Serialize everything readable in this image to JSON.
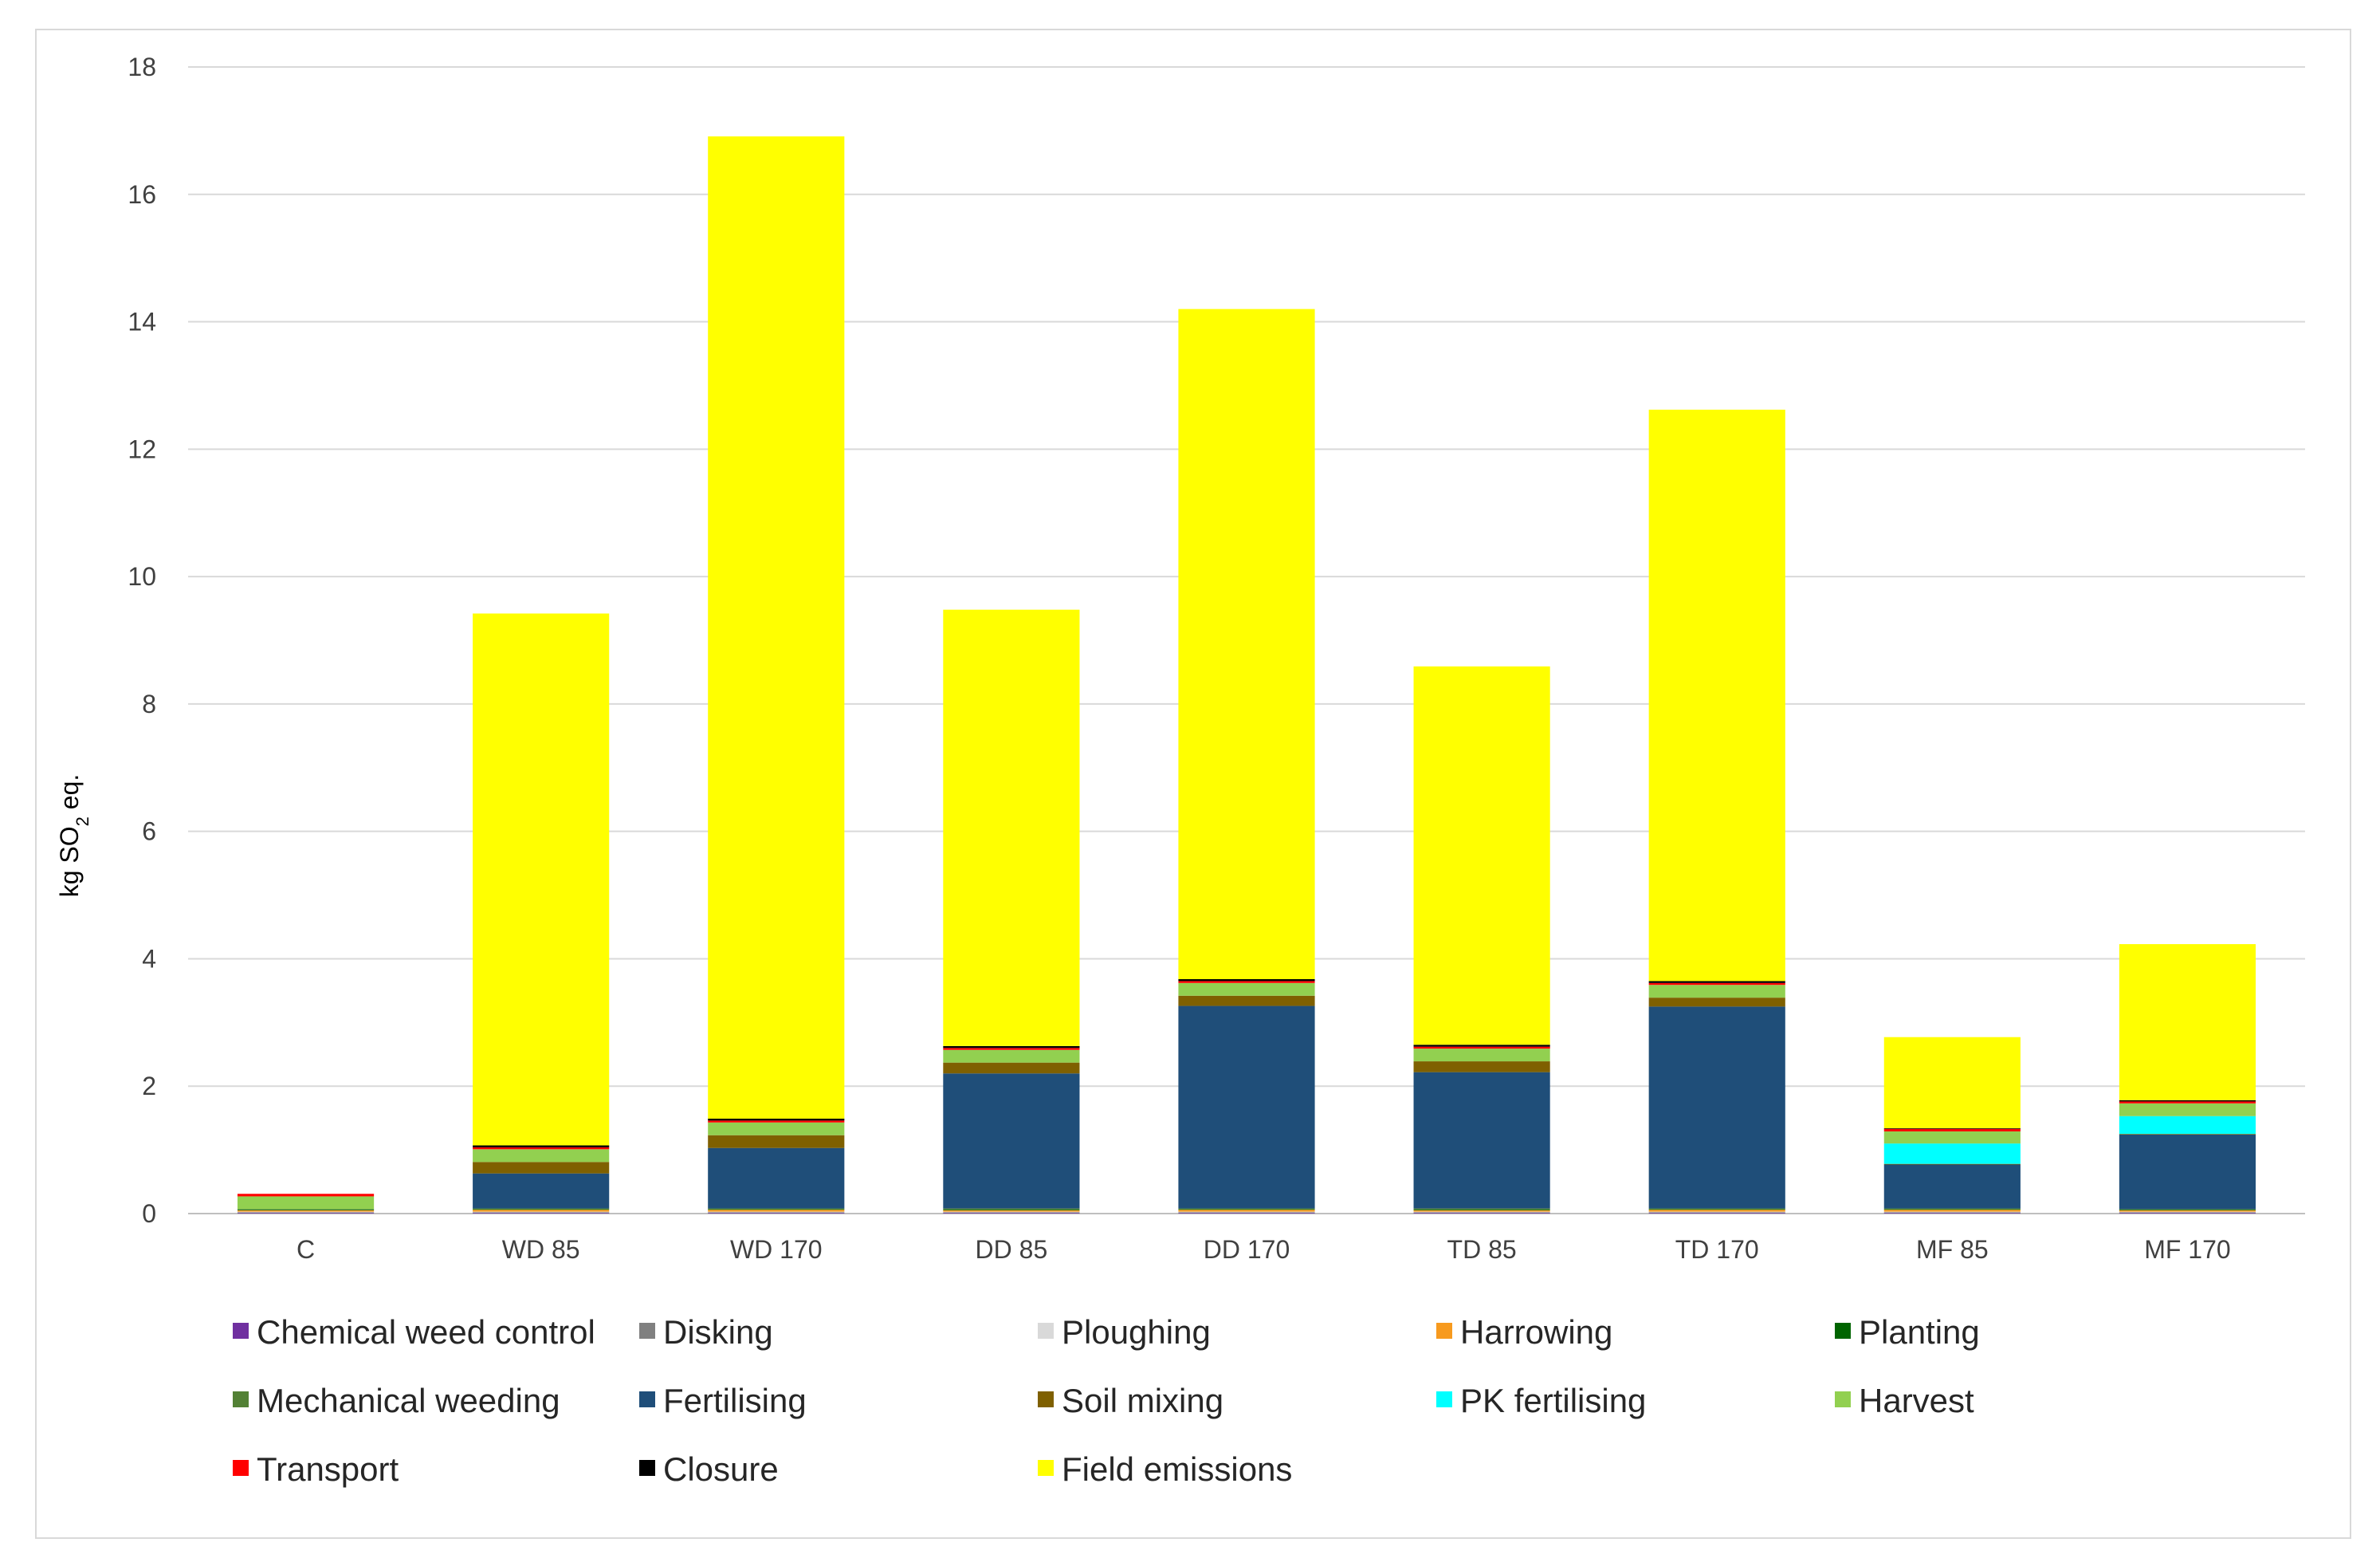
{
  "chart_data": {
    "type": "bar",
    "stacked": true,
    "title": "",
    "xlabel": "",
    "ylabel": "kg SO2 eq.",
    "ylabel_main": "kg SO",
    "ylabel_sub": "2",
    "ylabel_end": " eq.",
    "ylim": [
      0,
      18
    ],
    "yticks": [
      "0",
      "2",
      "4",
      "6",
      "8",
      "10",
      "12",
      "14",
      "16",
      "18"
    ],
    "grid": true,
    "legend_position": "bottom",
    "categories": [
      "C",
      "WD 85",
      "WD 170",
      "DD 85",
      "DD 170",
      "TD 85",
      "TD 170",
      "MF 85",
      "MF 170"
    ],
    "series": [
      {
        "name": "Chemical weed control",
        "color": "#7030a0",
        "values": [
          0.01,
          0.01,
          0.01,
          0.01,
          0.01,
          0.01,
          0.01,
          0.01,
          0.01
        ]
      },
      {
        "name": "Disking",
        "color": "#808080",
        "values": [
          0.01,
          0.01,
          0.01,
          0.01,
          0.01,
          0.01,
          0.01,
          0.01,
          0.01
        ]
      },
      {
        "name": "Ploughing",
        "color": "#d9d9d9",
        "values": [
          0.01,
          0.01,
          0.01,
          0.01,
          0.01,
          0.01,
          0.01,
          0.01,
          0.01
        ]
      },
      {
        "name": "Harrowing",
        "color": "#f79a1e",
        "values": [
          0.02,
          0.03,
          0.03,
          0.02,
          0.03,
          0.02,
          0.03,
          0.03,
          0.02
        ]
      },
      {
        "name": "Planting",
        "color": "#006400",
        "values": [
          0.01,
          0.01,
          0.01,
          0.01,
          0.01,
          0.01,
          0.01,
          0.01,
          0.01
        ]
      },
      {
        "name": "Mechanical weeding",
        "color": "#538135",
        "values": [
          0.01,
          0.01,
          0.01,
          0.02,
          0.01,
          0.02,
          0.01,
          0.01,
          0.01
        ]
      },
      {
        "name": "Fertilising",
        "color": "#1f4e79",
        "values": [
          0,
          0.55,
          0.95,
          2.12,
          3.18,
          2.14,
          3.17,
          0.69,
          1.17
        ]
      },
      {
        "name": "Soil mixing",
        "color": "#7f6000",
        "values": [
          0,
          0.18,
          0.2,
          0.17,
          0.16,
          0.17,
          0.14,
          0.01,
          0.01
        ]
      },
      {
        "name": "PK fertilising",
        "color": "#00ffff",
        "values": [
          0,
          0,
          0,
          0,
          0,
          0,
          0,
          0.32,
          0.28
        ]
      },
      {
        "name": "Harvest",
        "color": "#92d050",
        "values": [
          0.2,
          0.2,
          0.2,
          0.2,
          0.2,
          0.2,
          0.2,
          0.19,
          0.2
        ]
      },
      {
        "name": "Transport",
        "color": "#ff0000",
        "values": [
          0.04,
          0.03,
          0.03,
          0.03,
          0.03,
          0.03,
          0.03,
          0.04,
          0.03
        ]
      },
      {
        "name": "Closure",
        "color": "#000000",
        "values": [
          0,
          0.03,
          0.03,
          0.03,
          0.03,
          0.03,
          0.03,
          0.01,
          0.02
        ]
      },
      {
        "name": "Field emissions",
        "color": "#ffff00",
        "values": [
          0,
          8.35,
          15.42,
          6.85,
          10.52,
          5.94,
          8.97,
          1.43,
          2.45
        ]
      }
    ]
  }
}
